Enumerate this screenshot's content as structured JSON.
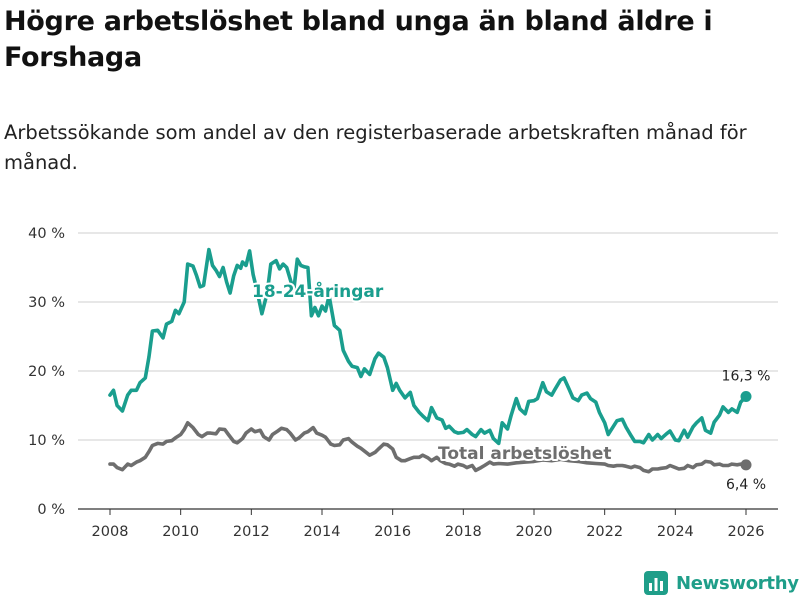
{
  "brand": {
    "name": "Newsworthy",
    "logo_icon": "bar-chart-logo-icon"
  },
  "chart_data": {
    "type": "line",
    "title": "Högre arbetslöshet bland unga än bland äldre i Forshaga",
    "subtitle": "Arbetssökande som andel av den registerbaserade arbetskraften månad för månad.",
    "xlabel": "",
    "ylabel": "",
    "xlim": [
      2007.6,
      2026.9
    ],
    "ylim": [
      0,
      40
    ],
    "grid": true,
    "y_ticks": [
      {
        "value": 0,
        "label": "0 %"
      },
      {
        "value": 10,
        "label": "10 %"
      },
      {
        "value": 20,
        "label": "20 %"
      },
      {
        "value": 30,
        "label": "30 %"
      },
      {
        "value": 40,
        "label": "40 %"
      }
    ],
    "x_ticks": [
      {
        "value": 2008,
        "label": "2008"
      },
      {
        "value": 2010,
        "label": "2010"
      },
      {
        "value": 2012,
        "label": "2012"
      },
      {
        "value": 2014,
        "label": "2014"
      },
      {
        "value": 2016,
        "label": "2016"
      },
      {
        "value": 2018,
        "label": "2018"
      },
      {
        "value": 2020,
        "label": "2020"
      },
      {
        "value": 2022,
        "label": "2022"
      },
      {
        "value": 2024,
        "label": "2024"
      },
      {
        "value": 2026,
        "label": "2026"
      }
    ],
    "series": [
      {
        "name": "18-24-åringar",
        "color": "#1a9e8e",
        "end_label": "16,3 %",
        "points": [
          [
            2008.0,
            16.5
          ],
          [
            2008.1,
            17.2
          ],
          [
            2008.2,
            15.0
          ],
          [
            2008.35,
            14.2
          ],
          [
            2008.5,
            16.5
          ],
          [
            2008.6,
            17.2
          ],
          [
            2008.75,
            17.2
          ],
          [
            2008.85,
            18.3
          ],
          [
            2009.0,
            19.0
          ],
          [
            2009.1,
            22.0
          ],
          [
            2009.2,
            25.8
          ],
          [
            2009.35,
            25.9
          ],
          [
            2009.5,
            24.8
          ],
          [
            2009.6,
            26.8
          ],
          [
            2009.75,
            27.2
          ],
          [
            2009.85,
            28.8
          ],
          [
            2009.95,
            28.3
          ],
          [
            2010.1,
            30.0
          ],
          [
            2010.2,
            35.5
          ],
          [
            2010.35,
            35.2
          ],
          [
            2010.45,
            33.8
          ],
          [
            2010.55,
            32.2
          ],
          [
            2010.65,
            32.4
          ],
          [
            2010.8,
            37.6
          ],
          [
            2010.9,
            35.3
          ],
          [
            2011.0,
            34.6
          ],
          [
            2011.1,
            33.7
          ],
          [
            2011.2,
            35.0
          ],
          [
            2011.3,
            32.9
          ],
          [
            2011.4,
            31.3
          ],
          [
            2011.5,
            33.8
          ],
          [
            2011.6,
            35.3
          ],
          [
            2011.7,
            34.9
          ],
          [
            2011.75,
            35.8
          ],
          [
            2011.85,
            35.3
          ],
          [
            2011.95,
            37.4
          ],
          [
            2012.05,
            34.0
          ],
          [
            2012.15,
            31.9
          ],
          [
            2012.3,
            28.3
          ],
          [
            2012.45,
            31.3
          ],
          [
            2012.55,
            35.5
          ],
          [
            2012.7,
            36.0
          ],
          [
            2012.8,
            34.8
          ],
          [
            2012.9,
            35.5
          ],
          [
            2013.0,
            35.0
          ],
          [
            2013.1,
            33.3
          ],
          [
            2013.2,
            31.6
          ],
          [
            2013.3,
            36.2
          ],
          [
            2013.4,
            35.3
          ],
          [
            2013.5,
            35.1
          ],
          [
            2013.6,
            35.0
          ],
          [
            2013.7,
            28.0
          ],
          [
            2013.8,
            29.2
          ],
          [
            2013.9,
            28.0
          ],
          [
            2014.0,
            29.4
          ],
          [
            2014.1,
            28.7
          ],
          [
            2014.2,
            30.9
          ],
          [
            2014.35,
            26.6
          ],
          [
            2014.5,
            25.9
          ],
          [
            2014.6,
            23.0
          ],
          [
            2014.75,
            21.4
          ],
          [
            2014.85,
            20.7
          ],
          [
            2015.0,
            20.5
          ],
          [
            2015.1,
            19.2
          ],
          [
            2015.2,
            20.3
          ],
          [
            2015.35,
            19.5
          ],
          [
            2015.5,
            21.8
          ],
          [
            2015.6,
            22.6
          ],
          [
            2015.75,
            22.0
          ],
          [
            2015.85,
            20.5
          ],
          [
            2016.0,
            17.2
          ],
          [
            2016.1,
            18.2
          ],
          [
            2016.2,
            17.2
          ],
          [
            2016.35,
            16.1
          ],
          [
            2016.5,
            16.9
          ],
          [
            2016.6,
            15.0
          ],
          [
            2016.75,
            14.0
          ],
          [
            2016.85,
            13.5
          ],
          [
            2017.0,
            12.8
          ],
          [
            2017.1,
            14.7
          ],
          [
            2017.25,
            13.2
          ],
          [
            2017.4,
            12.9
          ],
          [
            2017.5,
            11.7
          ],
          [
            2017.6,
            12.0
          ],
          [
            2017.75,
            11.2
          ],
          [
            2017.85,
            11.0
          ],
          [
            2018.0,
            11.1
          ],
          [
            2018.1,
            11.5
          ],
          [
            2018.25,
            10.8
          ],
          [
            2018.35,
            10.5
          ],
          [
            2018.5,
            11.5
          ],
          [
            2018.6,
            11.0
          ],
          [
            2018.75,
            11.4
          ],
          [
            2018.85,
            10.2
          ],
          [
            2019.0,
            9.5
          ],
          [
            2019.1,
            12.5
          ],
          [
            2019.25,
            11.6
          ],
          [
            2019.35,
            13.5
          ],
          [
            2019.5,
            16.0
          ],
          [
            2019.6,
            14.5
          ],
          [
            2019.75,
            13.8
          ],
          [
            2019.85,
            15.6
          ],
          [
            2020.0,
            15.7
          ],
          [
            2020.1,
            16.0
          ],
          [
            2020.25,
            18.3
          ],
          [
            2020.35,
            17.0
          ],
          [
            2020.5,
            16.5
          ],
          [
            2020.6,
            17.4
          ],
          [
            2020.75,
            18.7
          ],
          [
            2020.85,
            19.0
          ],
          [
            2021.0,
            17.3
          ],
          [
            2021.1,
            16.1
          ],
          [
            2021.25,
            15.7
          ],
          [
            2021.35,
            16.5
          ],
          [
            2021.5,
            16.8
          ],
          [
            2021.6,
            16.0
          ],
          [
            2021.75,
            15.5
          ],
          [
            2021.85,
            14.0
          ],
          [
            2022.0,
            12.5
          ],
          [
            2022.1,
            10.8
          ],
          [
            2022.25,
            12.0
          ],
          [
            2022.35,
            12.8
          ],
          [
            2022.5,
            13.0
          ],
          [
            2022.6,
            11.9
          ],
          [
            2022.75,
            10.6
          ],
          [
            2022.85,
            9.8
          ],
          [
            2023.0,
            9.8
          ],
          [
            2023.1,
            9.6
          ],
          [
            2023.25,
            10.8
          ],
          [
            2023.35,
            10.0
          ],
          [
            2023.5,
            10.8
          ],
          [
            2023.6,
            10.2
          ],
          [
            2023.75,
            10.9
          ],
          [
            2023.85,
            11.3
          ],
          [
            2024.0,
            10.0
          ],
          [
            2024.1,
            9.9
          ],
          [
            2024.25,
            11.4
          ],
          [
            2024.35,
            10.4
          ],
          [
            2024.5,
            11.9
          ],
          [
            2024.6,
            12.5
          ],
          [
            2024.75,
            13.2
          ],
          [
            2024.85,
            11.4
          ],
          [
            2025.0,
            11.0
          ],
          [
            2025.1,
            12.6
          ],
          [
            2025.25,
            13.6
          ],
          [
            2025.35,
            14.8
          ],
          [
            2025.5,
            14.0
          ],
          [
            2025.6,
            14.5
          ],
          [
            2025.75,
            14.0
          ],
          [
            2025.85,
            15.5
          ],
          [
            2026.0,
            16.3
          ]
        ]
      },
      {
        "name": "Total arbetslöshet",
        "color": "#6e6e6e",
        "end_label": "6,4 %",
        "points": [
          [
            2008.0,
            6.5
          ],
          [
            2008.1,
            6.5
          ],
          [
            2008.2,
            6.0
          ],
          [
            2008.35,
            5.7
          ],
          [
            2008.5,
            6.5
          ],
          [
            2008.6,
            6.3
          ],
          [
            2008.75,
            6.8
          ],
          [
            2008.85,
            7.0
          ],
          [
            2009.0,
            7.5
          ],
          [
            2009.1,
            8.3
          ],
          [
            2009.2,
            9.2
          ],
          [
            2009.35,
            9.5
          ],
          [
            2009.5,
            9.4
          ],
          [
            2009.6,
            9.8
          ],
          [
            2009.75,
            9.9
          ],
          [
            2009.85,
            10.3
          ],
          [
            2010.0,
            10.8
          ],
          [
            2010.1,
            11.5
          ],
          [
            2010.2,
            12.5
          ],
          [
            2010.35,
            11.8
          ],
          [
            2010.5,
            10.8
          ],
          [
            2010.6,
            10.5
          ],
          [
            2010.75,
            11.0
          ],
          [
            2010.85,
            11.0
          ],
          [
            2011.0,
            10.9
          ],
          [
            2011.1,
            11.6
          ],
          [
            2011.25,
            11.5
          ],
          [
            2011.35,
            10.8
          ],
          [
            2011.5,
            9.8
          ],
          [
            2011.6,
            9.6
          ],
          [
            2011.75,
            10.2
          ],
          [
            2011.85,
            11.0
          ],
          [
            2012.0,
            11.6
          ],
          [
            2012.1,
            11.2
          ],
          [
            2012.25,
            11.4
          ],
          [
            2012.35,
            10.5
          ],
          [
            2012.5,
            10.0
          ],
          [
            2012.6,
            10.8
          ],
          [
            2012.75,
            11.3
          ],
          [
            2012.85,
            11.7
          ],
          [
            2013.0,
            11.5
          ],
          [
            2013.1,
            11.0
          ],
          [
            2013.25,
            10.0
          ],
          [
            2013.35,
            10.3
          ],
          [
            2013.5,
            11.0
          ],
          [
            2013.6,
            11.2
          ],
          [
            2013.75,
            11.8
          ],
          [
            2013.85,
            11.0
          ],
          [
            2014.0,
            10.7
          ],
          [
            2014.1,
            10.4
          ],
          [
            2014.25,
            9.4
          ],
          [
            2014.35,
            9.2
          ],
          [
            2014.5,
            9.3
          ],
          [
            2014.6,
            10.0
          ],
          [
            2014.75,
            10.2
          ],
          [
            2014.85,
            9.7
          ],
          [
            2015.0,
            9.1
          ],
          [
            2015.1,
            8.8
          ],
          [
            2015.25,
            8.2
          ],
          [
            2015.35,
            7.8
          ],
          [
            2015.5,
            8.2
          ],
          [
            2015.6,
            8.7
          ],
          [
            2015.75,
            9.4
          ],
          [
            2015.85,
            9.3
          ],
          [
            2016.0,
            8.7
          ],
          [
            2016.1,
            7.5
          ],
          [
            2016.25,
            7.0
          ],
          [
            2016.35,
            7.0
          ],
          [
            2016.5,
            7.3
          ],
          [
            2016.6,
            7.5
          ],
          [
            2016.75,
            7.5
          ],
          [
            2016.85,
            7.8
          ],
          [
            2017.0,
            7.4
          ],
          [
            2017.1,
            7.0
          ],
          [
            2017.25,
            7.5
          ],
          [
            2017.35,
            7.0
          ],
          [
            2017.5,
            6.6
          ],
          [
            2017.6,
            6.5
          ],
          [
            2017.75,
            6.2
          ],
          [
            2017.85,
            6.5
          ],
          [
            2018.0,
            6.3
          ],
          [
            2018.1,
            6.0
          ],
          [
            2018.25,
            6.3
          ],
          [
            2018.35,
            5.6
          ],
          [
            2018.5,
            6.0
          ],
          [
            2018.6,
            6.3
          ],
          [
            2018.75,
            6.8
          ],
          [
            2018.85,
            6.5
          ],
          [
            2019.0,
            6.6
          ],
          [
            2019.25,
            6.5
          ],
          [
            2019.5,
            6.7
          ],
          [
            2019.75,
            6.8
          ],
          [
            2020.0,
            6.9
          ],
          [
            2020.25,
            7.1
          ],
          [
            2020.5,
            7.0
          ],
          [
            2020.75,
            7.2
          ],
          [
            2021.0,
            7.0
          ],
          [
            2021.25,
            6.9
          ],
          [
            2021.5,
            6.7
          ],
          [
            2021.75,
            6.6
          ],
          [
            2022.0,
            6.5
          ],
          [
            2022.1,
            6.3
          ],
          [
            2022.25,
            6.2
          ],
          [
            2022.35,
            6.3
          ],
          [
            2022.5,
            6.3
          ],
          [
            2022.6,
            6.2
          ],
          [
            2022.75,
            6.0
          ],
          [
            2022.85,
            6.2
          ],
          [
            2023.0,
            6.0
          ],
          [
            2023.1,
            5.6
          ],
          [
            2023.25,
            5.4
          ],
          [
            2023.35,
            5.8
          ],
          [
            2023.5,
            5.8
          ],
          [
            2023.6,
            5.9
          ],
          [
            2023.75,
            6.0
          ],
          [
            2023.85,
            6.3
          ],
          [
            2024.0,
            6.0
          ],
          [
            2024.1,
            5.8
          ],
          [
            2024.25,
            5.9
          ],
          [
            2024.35,
            6.3
          ],
          [
            2024.5,
            6.0
          ],
          [
            2024.6,
            6.4
          ],
          [
            2024.75,
            6.5
          ],
          [
            2024.85,
            6.9
          ],
          [
            2025.0,
            6.8
          ],
          [
            2025.1,
            6.4
          ],
          [
            2025.25,
            6.5
          ],
          [
            2025.35,
            6.3
          ],
          [
            2025.5,
            6.3
          ],
          [
            2025.6,
            6.5
          ],
          [
            2025.75,
            6.4
          ],
          [
            2025.85,
            6.5
          ],
          [
            2026.0,
            6.4
          ]
        ]
      }
    ]
  }
}
